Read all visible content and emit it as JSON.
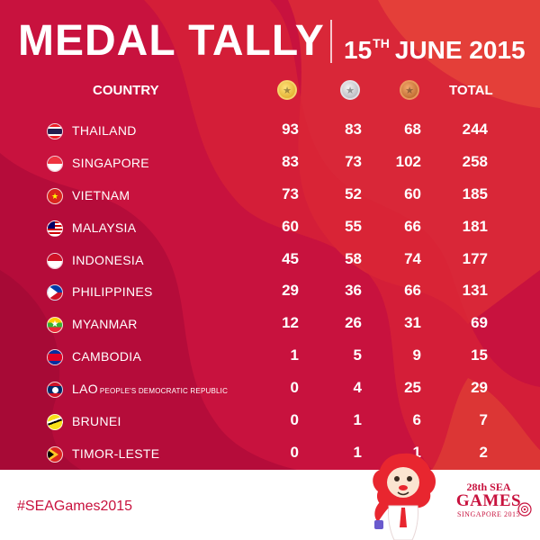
{
  "header": {
    "title": "MEDAL TALLY",
    "date_day": "15",
    "date_suffix": "TH",
    "date_rest": "JUNE 2015"
  },
  "columns": {
    "country": "COUNTRY",
    "gold_icon": "gold-medal-icon",
    "silver_icon": "silver-medal-icon",
    "bronze_icon": "bronze-medal-icon",
    "total": "TOTAL"
  },
  "rows": [
    {
      "country": "THAILAND",
      "suffix": "",
      "gold": "93",
      "silver": "83",
      "bronze": "68",
      "total": "244",
      "flag": "thailand-flag-icon"
    },
    {
      "country": "SINGAPORE",
      "suffix": "",
      "gold": "83",
      "silver": "73",
      "bronze": "102",
      "total": "258",
      "flag": "singapore-flag-icon"
    },
    {
      "country": "VIETNAM",
      "suffix": "",
      "gold": "73",
      "silver": "52",
      "bronze": "60",
      "total": "185",
      "flag": "vietnam-flag-icon"
    },
    {
      "country": "MALAYSIA",
      "suffix": "",
      "gold": "60",
      "silver": "55",
      "bronze": "66",
      "total": "181",
      "flag": "malaysia-flag-icon"
    },
    {
      "country": "INDONESIA",
      "suffix": "",
      "gold": "45",
      "silver": "58",
      "bronze": "74",
      "total": "177",
      "flag": "indonesia-flag-icon"
    },
    {
      "country": "PHILIPPINES",
      "suffix": "",
      "gold": "29",
      "silver": "36",
      "bronze": "66",
      "total": "131",
      "flag": "philippines-flag-icon"
    },
    {
      "country": "MYANMAR",
      "suffix": "",
      "gold": "12",
      "silver": "26",
      "bronze": "31",
      "total": "69",
      "flag": "myanmar-flag-icon"
    },
    {
      "country": "CAMBODIA",
      "suffix": "",
      "gold": "1",
      "silver": "5",
      "bronze": "9",
      "total": "15",
      "flag": "cambodia-flag-icon"
    },
    {
      "country": "LAO",
      "suffix": "PEOPLE'S DEMOCRATIC REPUBLIC",
      "gold": "0",
      "silver": "4",
      "bronze": "25",
      "total": "29",
      "flag": "lao-flag-icon"
    },
    {
      "country": "BRUNEI",
      "suffix": "",
      "gold": "0",
      "silver": "1",
      "bronze": "6",
      "total": "7",
      "flag": "brunei-flag-icon"
    },
    {
      "country": "TIMOR-LESTE",
      "suffix": "",
      "gold": "0",
      "silver": "1",
      "bronze": "1",
      "total": "2",
      "flag": "timor-leste-flag-icon"
    }
  ],
  "footer": {
    "hashtag": "#SEAGames2015",
    "logo_edition": "28th SEA",
    "logo_name": "GAMES",
    "logo_place": "SINGAPORE 2015",
    "mascot_icon": "lion-mascot-icon"
  },
  "colors": {
    "background": "#c8123e",
    "accent": "#e2382f",
    "text": "#ffffff"
  }
}
